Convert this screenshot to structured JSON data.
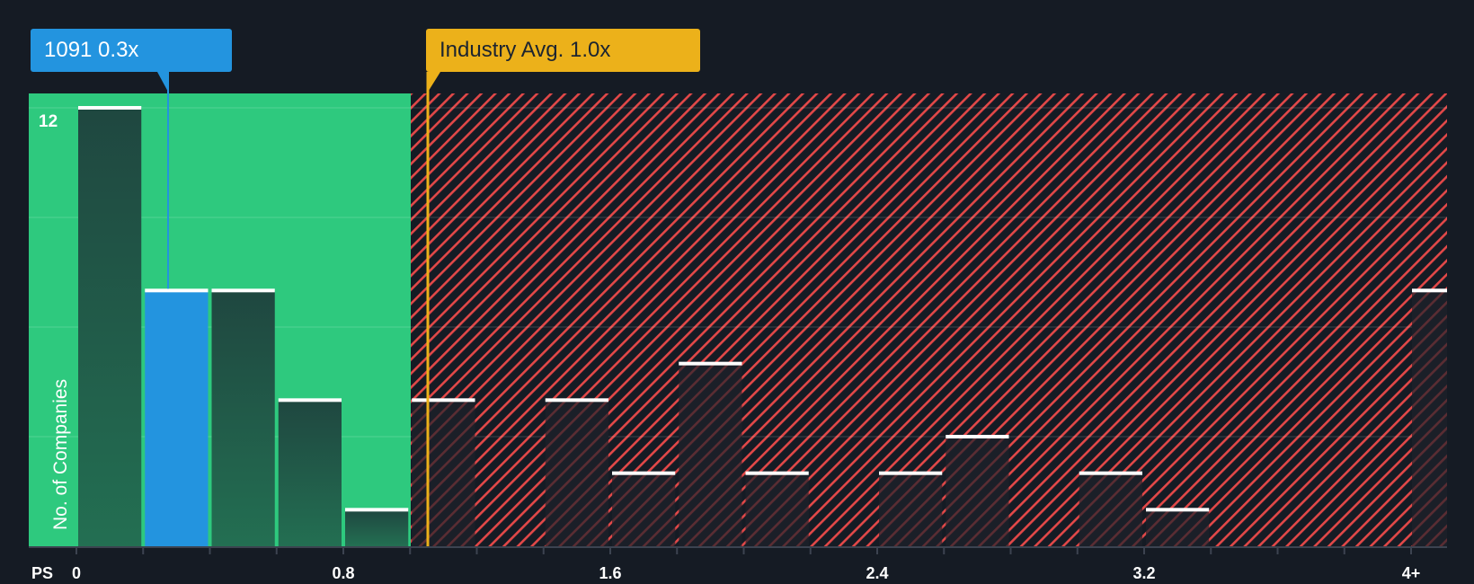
{
  "chart_data": {
    "type": "bar",
    "title": "",
    "xlabel": "PS",
    "ylabel": "No. of Companies",
    "bin_edges": [
      0,
      0.2,
      0.4,
      0.6,
      0.8,
      1.0,
      1.2,
      1.4,
      1.6,
      1.8,
      2.0,
      2.2,
      2.4,
      2.6,
      2.8,
      3.0,
      3.2,
      3.4,
      3.6,
      3.8,
      4.0
    ],
    "categories": [
      "0-0.2",
      "0.2-0.4",
      "0.4-0.6",
      "0.6-0.8",
      "0.8-1.0",
      "1.0-1.2",
      "1.2-1.4",
      "1.4-1.6",
      "1.6-1.8",
      "1.8-2.0",
      "2.0-2.2",
      "2.2-2.4",
      "2.4-2.6",
      "2.6-2.8",
      "2.8-3.0",
      "3.0-3.2",
      "3.2-3.4",
      "3.4-3.6",
      "3.6-3.8",
      "3.8-4.0",
      "4+"
    ],
    "values": [
      12,
      7,
      7,
      4,
      1,
      4,
      0,
      4,
      2,
      5,
      2,
      0,
      2,
      3,
      0,
      2,
      1,
      0,
      0,
      0,
      7
    ],
    "highlighted_bin": 1,
    "x_tick_labels": [
      "0",
      "0.8",
      "1.6",
      "2.4",
      "3.2",
      "4+"
    ],
    "y_tick_labels": [
      "12"
    ],
    "ylim": [
      0,
      12.4
    ],
    "grid": true,
    "company_value": 0.3,
    "industry_avg": 1.0,
    "annotations": [
      {
        "label": "1091 0.3x",
        "x": 0.3,
        "color": "#2394df"
      },
      {
        "label": "Industry Avg. 1.0x",
        "x": 1.0,
        "color": "#ecb11a"
      }
    ],
    "regions": [
      {
        "name": "undervalued",
        "from": 0,
        "to": 0.95,
        "color": "#2ec97e"
      },
      {
        "name": "overvalued",
        "from": 0.95,
        "to": 4.2,
        "color": "#e24848",
        "pattern": "hatch"
      }
    ]
  },
  "labels": {
    "company_callout": "1091 0.3x",
    "industry_callout": "Industry Avg. 1.0x",
    "x_axis_name": "PS",
    "y_axis_title": "No. of Companies",
    "y_tick_top": "12",
    "x_ticks": [
      "0",
      "0.8",
      "1.6",
      "2.4",
      "3.2",
      "4+"
    ]
  },
  "colors": {
    "background": "#151b24",
    "green_zone": "#2ec97e",
    "hatch_red": "#e24848",
    "company_blue": "#2394df",
    "industry_gold": "#ecb11a",
    "bar_dark_green": "#1f4a3f",
    "bar_dark": "#1c2029"
  }
}
